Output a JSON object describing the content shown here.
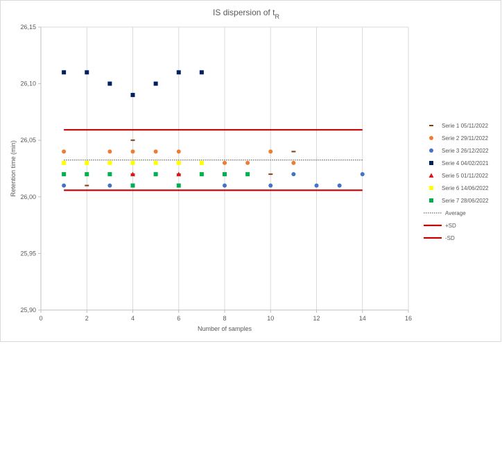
{
  "chart_data": {
    "type": "scatter",
    "title": "IS dispersion of t",
    "title_subscript": "R",
    "xlabel": "Number of samples",
    "ylabel": "Retention time (min)",
    "xlim": [
      0,
      16
    ],
    "ylim": [
      25.9,
      26.15
    ],
    "x_ticks": [
      0,
      2,
      4,
      6,
      8,
      10,
      12,
      14,
      16
    ],
    "x_tick_labels": [
      "0",
      "2",
      "4",
      "6",
      "8",
      "10",
      "12",
      "14",
      "16"
    ],
    "y_ticks": [
      25.9,
      25.95,
      26.0,
      26.05,
      26.1,
      26.15
    ],
    "y_tick_labels": [
      "25,90",
      "25,95",
      "26,00",
      "26,05",
      "26,10",
      "26,15"
    ],
    "grid": "vertical",
    "legend_position": "right",
    "series": [
      {
        "name": "Serie 1 05/11/2022",
        "marker": "dash",
        "color": "#843c0c",
        "points": [
          [
            2,
            26.01
          ],
          [
            4,
            26.05
          ],
          [
            4,
            26.02
          ],
          [
            6,
            26.02
          ],
          [
            8,
            26.03
          ],
          [
            10,
            26.02
          ],
          [
            11,
            26.04
          ]
        ]
      },
      {
        "name": "Serie 2 29/11/2022",
        "marker": "circle",
        "color": "#ed7d31",
        "points": [
          [
            1,
            26.04
          ],
          [
            3,
            26.04
          ],
          [
            4,
            26.04
          ],
          [
            5,
            26.04
          ],
          [
            6,
            26.04
          ],
          [
            8,
            26.03
          ],
          [
            9,
            26.03
          ],
          [
            10,
            26.04
          ],
          [
            11,
            26.03
          ]
        ]
      },
      {
        "name": "Serie 3 26/12/2022",
        "marker": "circle",
        "color": "#4472c4",
        "points": [
          [
            1,
            26.01
          ],
          [
            3,
            26.01
          ],
          [
            8,
            26.01
          ],
          [
            10,
            26.01
          ],
          [
            11,
            26.02
          ],
          [
            12,
            26.01
          ],
          [
            13,
            26.01
          ],
          [
            14,
            26.02
          ]
        ]
      },
      {
        "name": "Serie 4 04/02/2021",
        "marker": "square",
        "color": "#002060",
        "points": [
          [
            1,
            26.11
          ],
          [
            2,
            26.11
          ],
          [
            3,
            26.1
          ],
          [
            4,
            26.09
          ],
          [
            5,
            26.1
          ],
          [
            6,
            26.11
          ],
          [
            7,
            26.11
          ]
        ]
      },
      {
        "name": "Serie 5 01/11/2022",
        "marker": "triangle",
        "color": "#e0121a",
        "points": [
          [
            4,
            26.02
          ],
          [
            6,
            26.02
          ]
        ]
      },
      {
        "name": "Serie 6 14/06/2022",
        "marker": "square",
        "color": "#ffff00",
        "points": [
          [
            1,
            26.03
          ],
          [
            2,
            26.03
          ],
          [
            3,
            26.03
          ],
          [
            4,
            26.03
          ],
          [
            5,
            26.03
          ],
          [
            6,
            26.03
          ],
          [
            7,
            26.03
          ]
        ]
      },
      {
        "name": "Serie 7 28/06/2022",
        "marker": "square",
        "color": "#00b050",
        "points": [
          [
            1,
            26.02
          ],
          [
            2,
            26.02
          ],
          [
            3,
            26.02
          ],
          [
            4,
            26.01
          ],
          [
            5,
            26.02
          ],
          [
            6,
            26.01
          ],
          [
            7,
            26.02
          ],
          [
            8,
            26.02
          ],
          [
            9,
            26.02
          ]
        ]
      }
    ],
    "reference_lines": [
      {
        "name": "Average",
        "style": "dotted",
        "color": "#404040",
        "x": [
          1,
          14
        ],
        "y": 26.0325
      },
      {
        "name": "+SD",
        "style": "solid",
        "color": "#c00000",
        "x": [
          1,
          14
        ],
        "y": 26.0592
      },
      {
        "name": "-SD",
        "style": "solid",
        "color": "#c00000",
        "x": [
          1,
          14
        ],
        "y": 26.0058
      }
    ]
  }
}
